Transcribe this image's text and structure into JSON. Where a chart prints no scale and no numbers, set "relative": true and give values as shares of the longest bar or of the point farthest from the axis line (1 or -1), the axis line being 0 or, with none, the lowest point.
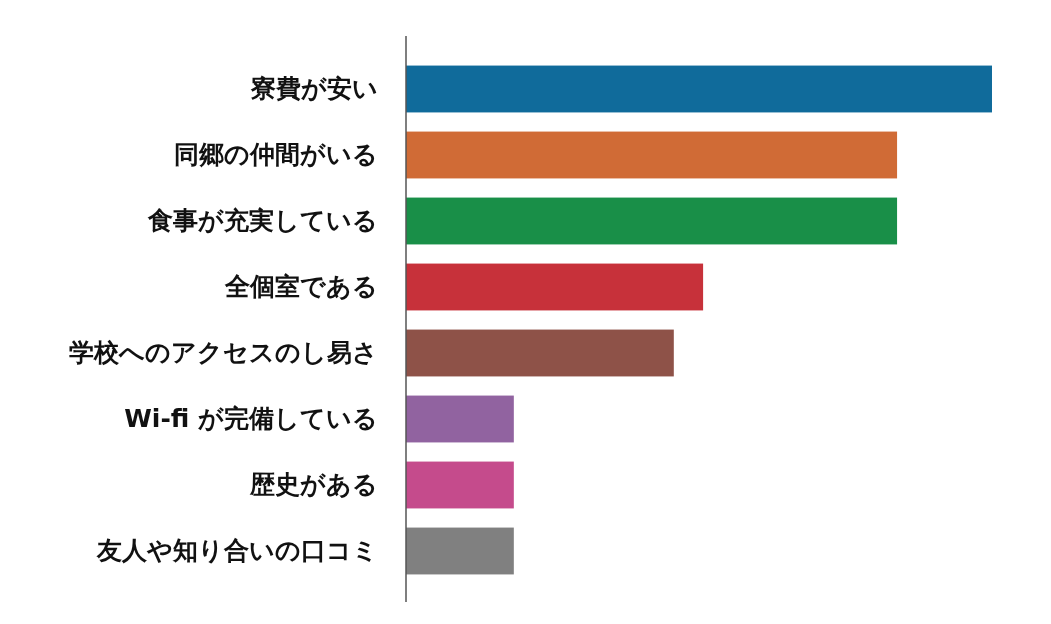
{
  "chart_data": {
    "type": "bar",
    "orientation": "horizontal",
    "relative": true,
    "categories": [
      "寮費が安い",
      "同郷の仲間がいる",
      "食事が充実している",
      "全個室である",
      "学校へのアクセスのし易さ",
      "Wi-fi が完備している",
      "歴史がある",
      "友人や知り合いの口コミ"
    ],
    "values": [
      1,
      0.838,
      0.838,
      0.507,
      0.457,
      0.184,
      0.184,
      0.184
    ],
    "colors": [
      "#106b9b",
      "#d06b36",
      "#198f48",
      "#c7313a",
      "#8e5248",
      "#9163a0",
      "#c54b8c",
      "#808080"
    ]
  }
}
